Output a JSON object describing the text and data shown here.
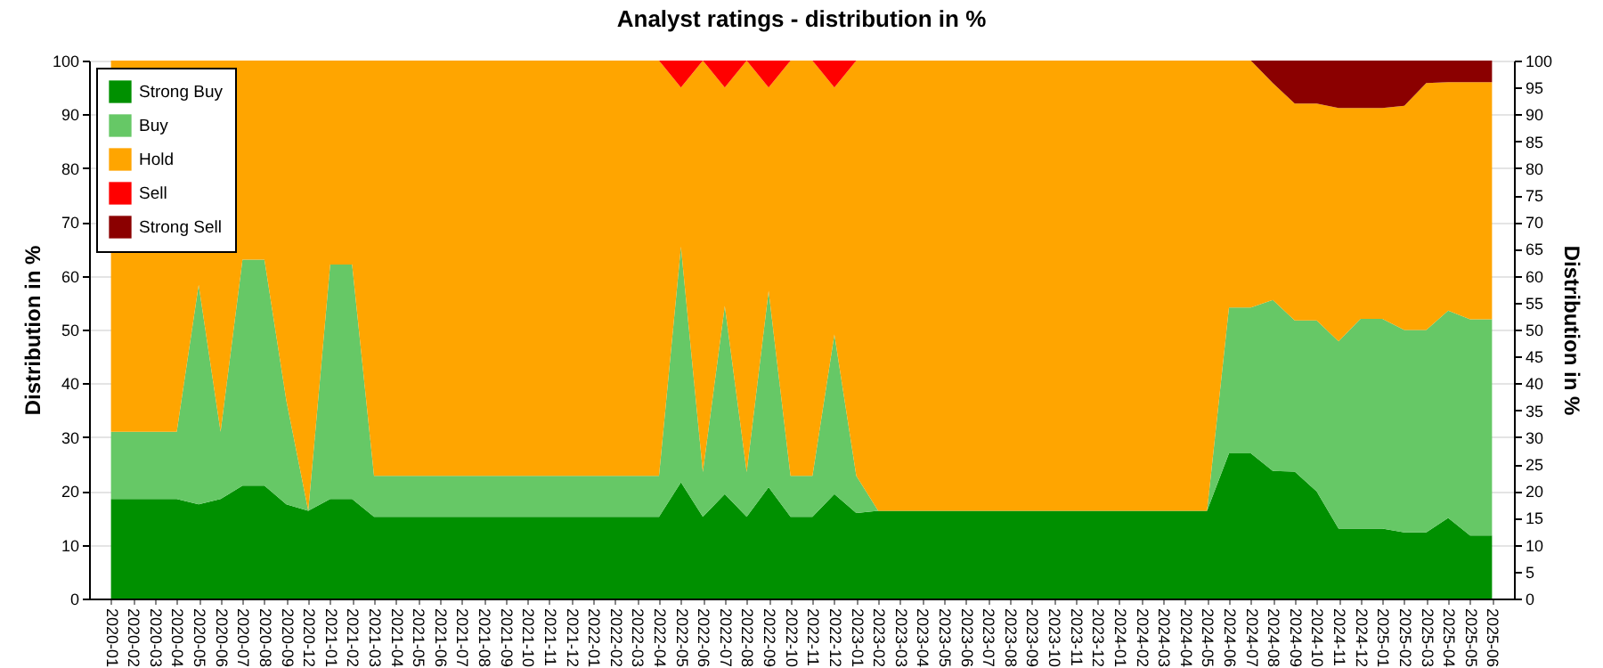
{
  "chart_data": {
    "type": "area",
    "title": "Analyst ratings - distribution in %",
    "ylabel": "Distribution in %",
    "y2label": "Distribution in %",
    "categories": [
      "2020-01",
      "2020-02",
      "2020-03",
      "2020-04",
      "2020-05",
      "2020-06",
      "2020-07",
      "2020-08",
      "2020-09",
      "2020-12",
      "2021-01",
      "2021-02",
      "2021-03",
      "2021-04",
      "2021-05",
      "2021-06",
      "2021-07",
      "2021-08",
      "2021-09",
      "2021-10",
      "2021-11",
      "2021-12",
      "2022-01",
      "2022-02",
      "2022-03",
      "2022-04",
      "2022-05",
      "2022-06",
      "2022-07",
      "2022-08",
      "2022-09",
      "2022-10",
      "2022-11",
      "2022-12",
      "2023-01",
      "2023-02",
      "2023-03",
      "2023-04",
      "2023-05",
      "2023-06",
      "2023-07",
      "2023-08",
      "2023-09",
      "2023-10",
      "2023-11",
      "2023-12",
      "2024-01",
      "2024-02",
      "2024-03",
      "2024-04",
      "2024-05",
      "2024-06",
      "2024-07",
      "2024-08",
      "2024-09",
      "2024-10",
      "2024-11",
      "2024-12",
      "2025-01",
      "2025-02",
      "2025-03",
      "2025-04",
      "2025-05",
      "2025-06"
    ],
    "series": [
      {
        "name": "Strong Buy",
        "color": "#009000",
        "values": [
          18.5,
          18.5,
          18.5,
          18.5,
          17.5,
          18.5,
          21,
          21,
          17.5,
          16.3,
          18.5,
          18.5,
          15.2,
          15.2,
          15.2,
          15.2,
          15.2,
          15.2,
          15.2,
          15.2,
          15.2,
          15.2,
          15.2,
          15.2,
          15.2,
          15.2,
          21.6,
          15.2,
          19.4,
          15.2,
          20.7,
          15.2,
          15.2,
          19.4,
          15.9,
          16.3,
          16.3,
          16.3,
          16.3,
          16.3,
          16.3,
          16.3,
          16.3,
          16.3,
          16.3,
          16.3,
          16.3,
          16.3,
          16.3,
          16.3,
          16.3,
          27,
          27,
          23.7,
          23.6,
          19.9,
          13,
          13,
          13,
          12.3,
          12.3,
          15,
          11.7,
          11.7
        ]
      },
      {
        "name": "Buy",
        "color": "#66c866",
        "values": [
          12.5,
          12.5,
          12.5,
          12.5,
          40.8,
          12.5,
          42,
          42,
          19.3,
          0,
          43.6,
          43.6,
          7.6,
          7.6,
          7.6,
          7.6,
          7.6,
          7.6,
          7.6,
          7.6,
          7.6,
          7.6,
          7.6,
          7.6,
          7.6,
          7.6,
          43.8,
          8.3,
          35,
          8.3,
          36.5,
          7.6,
          7.6,
          29.7,
          6.9,
          0,
          0,
          0,
          0,
          0,
          0,
          0,
          0,
          0,
          0,
          0,
          0,
          0,
          0,
          0,
          0,
          27.1,
          27.1,
          31.8,
          28.1,
          31.8,
          34.8,
          39,
          39,
          37.6,
          37.6,
          38.5,
          40.2,
          40.2
        ]
      },
      {
        "name": "Hold",
        "color": "#ffa500",
        "values": [
          69,
          69,
          69,
          69,
          41.7,
          69,
          37,
          37,
          63.2,
          83.7,
          37.9,
          37.9,
          77.2,
          77.2,
          77.2,
          77.2,
          77.2,
          77.2,
          77.2,
          77.2,
          77.2,
          77.2,
          77.2,
          77.2,
          77.2,
          77.2,
          29.6,
          76.5,
          40.6,
          76.5,
          37.8,
          77.2,
          77.2,
          45.9,
          77.2,
          83.7,
          83.7,
          83.7,
          83.7,
          83.7,
          83.7,
          83.7,
          83.7,
          83.7,
          83.7,
          83.7,
          83.7,
          83.7,
          83.7,
          83.7,
          83.7,
          45.9,
          45.9,
          40.3,
          40.3,
          40.3,
          43.4,
          39.2,
          39.2,
          41.7,
          45.9,
          42.5,
          44.1,
          44.1
        ]
      },
      {
        "name": "Sell",
        "color": "#ff0000",
        "values": [
          null,
          null,
          null,
          null,
          null,
          null,
          null,
          null,
          null,
          null,
          null,
          null,
          null,
          null,
          null,
          null,
          null,
          null,
          null,
          null,
          null,
          null,
          null,
          null,
          null,
          0,
          5,
          0,
          5,
          0,
          5,
          0,
          0,
          5,
          0,
          null,
          null,
          null,
          null,
          null,
          null,
          null,
          null,
          null,
          null,
          null,
          null,
          null,
          null,
          null,
          null,
          null,
          null,
          null,
          null,
          null,
          null,
          null,
          null,
          null,
          null,
          null,
          null,
          null
        ]
      },
      {
        "name": "Strong Sell",
        "color": "#8b0000",
        "values": [
          null,
          null,
          null,
          null,
          null,
          null,
          null,
          null,
          null,
          null,
          null,
          null,
          null,
          null,
          null,
          null,
          null,
          null,
          null,
          null,
          null,
          null,
          null,
          null,
          null,
          null,
          null,
          null,
          null,
          null,
          null,
          null,
          null,
          null,
          null,
          null,
          null,
          null,
          null,
          null,
          null,
          null,
          null,
          null,
          null,
          null,
          null,
          null,
          null,
          null,
          null,
          null,
          0,
          4.2,
          8,
          8,
          8.8,
          8.8,
          8.8,
          8.4,
          4.2,
          4,
          4,
          4
        ]
      }
    ],
    "stacked": true,
    "ylim": [
      0,
      100
    ],
    "yticks": [
      0,
      10,
      20,
      30,
      40,
      50,
      60,
      70,
      80,
      90,
      100
    ],
    "y2lim": [
      0,
      100
    ],
    "y2ticks": [
      0,
      5,
      10,
      15,
      20,
      25,
      30,
      35,
      40,
      45,
      50,
      55,
      60,
      65,
      70,
      75,
      80,
      85,
      90,
      95,
      100
    ],
    "grid": "y",
    "legend": "top left"
  }
}
